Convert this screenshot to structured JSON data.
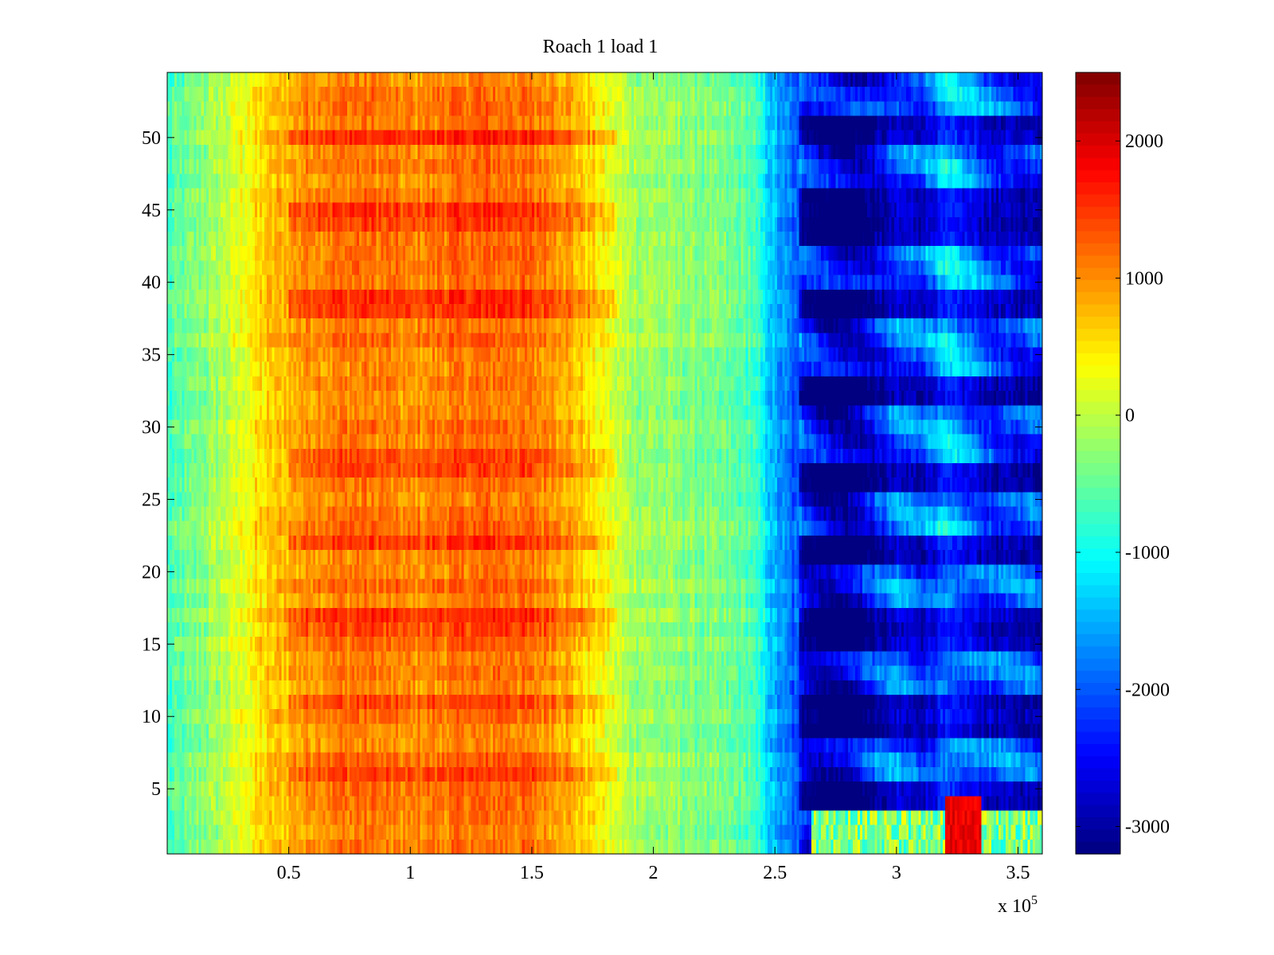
{
  "chart_data": {
    "type": "heatmap",
    "title": "Roach 1 load 1",
    "xlabel": "",
    "ylabel": "",
    "xlim": [
      0,
      360000
    ],
    "ylim": [
      0.5,
      54.5
    ],
    "x_ticks": [
      50000,
      100000,
      150000,
      200000,
      250000,
      300000,
      350000
    ],
    "x_tick_labels": [
      "0.5",
      "1",
      "1.5",
      "2",
      "2.5",
      "3",
      "3.5"
    ],
    "x_exponent_label": "x 10",
    "x_exponent": "5",
    "y_ticks": [
      5,
      10,
      15,
      20,
      25,
      30,
      35,
      40,
      45,
      50
    ],
    "y_tick_labels": [
      "5",
      "10",
      "15",
      "20",
      "25",
      "30",
      "35",
      "40",
      "45",
      "50"
    ],
    "colorbar": {
      "colormap": "jet",
      "clim": [
        -3200,
        2500
      ],
      "ticks": [
        2000,
        1000,
        0,
        -1000,
        -2000,
        -3000
      ],
      "tick_labels": [
        "2000",
        "1000",
        "0",
        "-1000",
        "-2000",
        "-3000"
      ]
    },
    "grid": false,
    "rows": 54,
    "x_breakpoints": [
      0,
      20000,
      40000,
      60000,
      80000,
      100000,
      120000,
      140000,
      160000,
      180000,
      190000,
      200000,
      220000,
      240000,
      250000,
      260000,
      270000,
      280000,
      290000,
      300000,
      310000,
      320000,
      330000,
      340000,
      360000
    ],
    "x_profile": [
      -700,
      -150,
      600,
      1050,
      1150,
      1000,
      1150,
      1200,
      1000,
      300,
      -100,
      -200,
      -350,
      -600,
      -1500,
      -2100,
      -2600,
      -2700,
      -2300,
      -1900,
      -2000,
      -1500,
      -1700,
      -2000,
      -2100
    ],
    "blue_band_rows": [
      4,
      5,
      9,
      10,
      11,
      15,
      16,
      17,
      21,
      22,
      26,
      27,
      32,
      33,
      38,
      39,
      43,
      44,
      45,
      46,
      50,
      51
    ],
    "orange_band_rows": [
      6,
      11,
      16,
      17,
      22,
      27,
      28,
      38,
      39,
      44,
      45,
      50
    ],
    "hot_region": {
      "x": [
        320000,
        335000
      ],
      "rows": [
        1,
        2,
        3,
        4
      ],
      "value": 1900
    }
  }
}
